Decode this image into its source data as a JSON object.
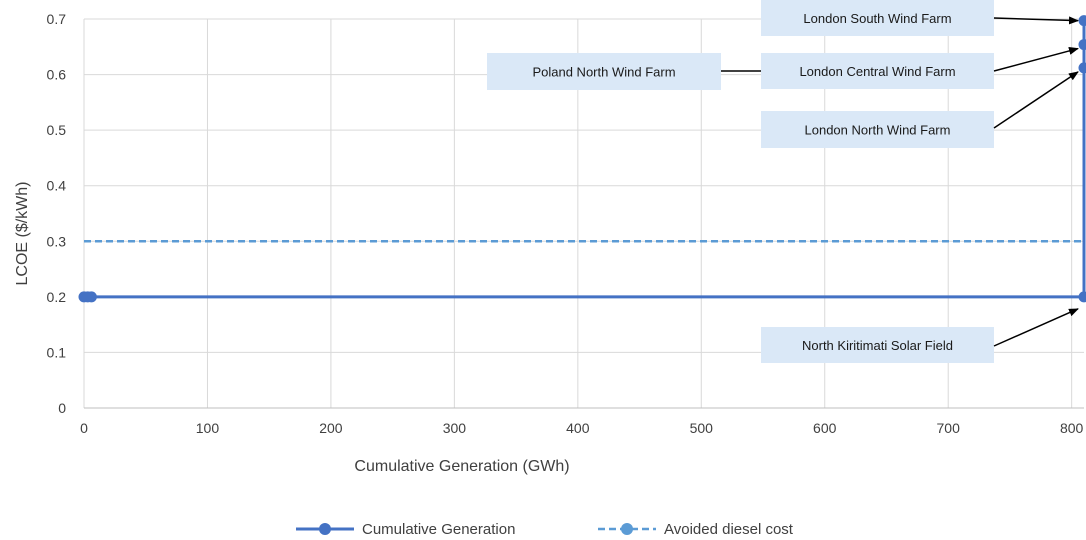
{
  "chart_data": {
    "type": "line",
    "xlabel": "Cumulative Generation (GWh)",
    "ylabel": "LCOE ($/kWh)",
    "xlim": [
      0,
      810
    ],
    "ylim": [
      0,
      0.7
    ],
    "x_ticks": [
      0,
      100,
      200,
      300,
      400,
      500,
      600,
      700,
      800
    ],
    "y_ticks": [
      0,
      0.1,
      0.2,
      0.3,
      0.4,
      0.5,
      0.6,
      0.7
    ],
    "grid": true,
    "legend_position": "bottom",
    "series": [
      {
        "name": "Cumulative Generation",
        "color": "#4472C4",
        "style": "solid",
        "points": [
          {
            "x": 0,
            "y": 0.2
          },
          {
            "x": 3,
            "y": 0.2
          },
          {
            "x": 6,
            "y": 0.2
          },
          {
            "x": 810,
            "y": 0.2
          },
          {
            "x": 810,
            "y": 0.612
          },
          {
            "x": 810,
            "y": 0.654
          },
          {
            "x": 810,
            "y": 0.697
          }
        ]
      },
      {
        "name": "Avoided diesel cost",
        "color": "#5B9BD5",
        "style": "dashed",
        "points": [
          {
            "x": 0,
            "y": 0.3
          },
          {
            "x": 810,
            "y": 0.3
          }
        ]
      }
    ],
    "annotations": [
      {
        "text": "London South  Wind Farm",
        "target": {
          "x": 810,
          "y": 0.697
        }
      },
      {
        "text": "London Central Wind Farm",
        "target": {
          "x": 810,
          "y": 0.654
        }
      },
      {
        "text": "Poland North  Wind Farm",
        "target": null
      },
      {
        "text": "London North Wind Farm",
        "target": {
          "x": 810,
          "y": 0.612
        }
      },
      {
        "text": "North  Kiritimati Solar Field",
        "target": {
          "x": 810,
          "y": 0.2
        }
      }
    ]
  }
}
